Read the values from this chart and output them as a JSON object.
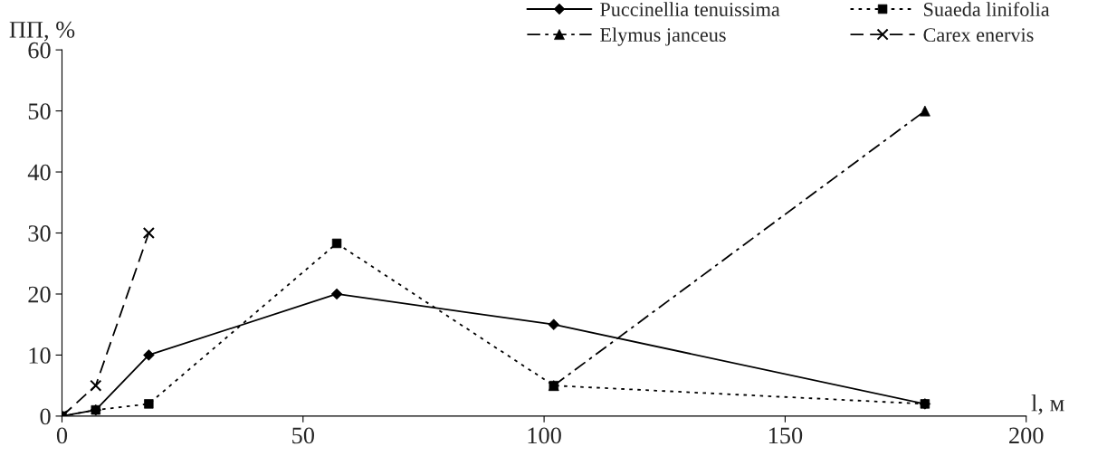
{
  "chart_data": {
    "type": "line",
    "xlabel": "l, м",
    "ylabel": "ПП, %",
    "xlim": [
      0,
      200
    ],
    "xticks": [
      0,
      50,
      100,
      150,
      200
    ],
    "ylim": [
      0,
      60
    ],
    "yticks": [
      0,
      10,
      20,
      30,
      40,
      50,
      60
    ],
    "grid": false,
    "legend": "top right",
    "series": [
      {
        "name": "Puccinellia tenuissima",
        "color": "#000000",
        "marker": "diamond",
        "line_style": "solid",
        "x": [
          0,
          7,
          18,
          57,
          102,
          179
        ],
        "values": [
          0,
          1,
          10,
          20,
          15,
          2
        ]
      },
      {
        "name": "Suaeda linifolia",
        "color": "#000000",
        "marker": "square",
        "line_style": "dotted",
        "x": [
          0,
          7,
          18,
          57,
          102,
          179
        ],
        "values": [
          0,
          1,
          2,
          28.3,
          5,
          2
        ]
      },
      {
        "name": "Elymus janceus",
        "color": "#000000",
        "marker": "triangle",
        "line_style": "dashdot",
        "x": [
          102,
          179
        ],
        "values": [
          5,
          50
        ]
      },
      {
        "name": "Carex enervis",
        "color": "#000000",
        "marker": "cross",
        "line_style": "dashed",
        "x": [
          0,
          7,
          18
        ],
        "values": [
          0,
          5,
          30
        ]
      }
    ]
  }
}
